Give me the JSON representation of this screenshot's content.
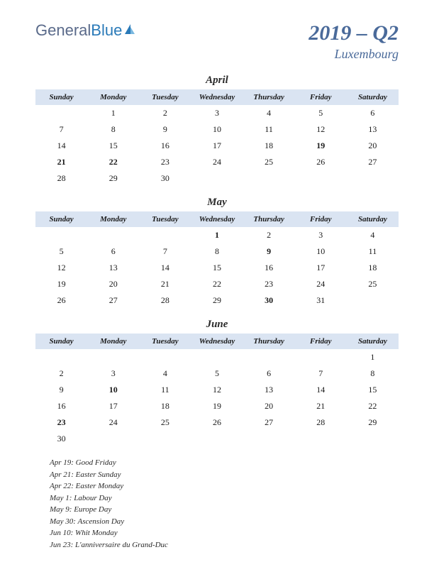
{
  "logo": {
    "part1": "General",
    "part2": "Blue"
  },
  "title": "2019 – Q2",
  "country": "Luxembourg",
  "day_headers": [
    "Sunday",
    "Monday",
    "Tuesday",
    "Wednesday",
    "Thursday",
    "Friday",
    "Saturday"
  ],
  "header_bg": "#dae4f2",
  "title_color": "#4a6a9a",
  "holiday_color": "#b22222",
  "months": [
    {
      "name": "April",
      "weeks": [
        [
          "",
          "1",
          "2",
          "3",
          "4",
          "5",
          "6"
        ],
        [
          "7",
          "8",
          "9",
          "10",
          "11",
          "12",
          "13"
        ],
        [
          "14",
          "15",
          "16",
          "17",
          "18",
          "19",
          "20"
        ],
        [
          "21",
          "22",
          "23",
          "24",
          "25",
          "26",
          "27"
        ],
        [
          "28",
          "29",
          "30",
          "",
          "",
          "",
          ""
        ]
      ],
      "holidays": [
        "19",
        "21",
        "22"
      ]
    },
    {
      "name": "May",
      "weeks": [
        [
          "",
          "",
          "",
          "1",
          "2",
          "3",
          "4"
        ],
        [
          "5",
          "6",
          "7",
          "8",
          "9",
          "10",
          "11"
        ],
        [
          "12",
          "13",
          "14",
          "15",
          "16",
          "17",
          "18"
        ],
        [
          "19",
          "20",
          "21",
          "22",
          "23",
          "24",
          "25"
        ],
        [
          "26",
          "27",
          "28",
          "29",
          "30",
          "31",
          ""
        ]
      ],
      "holidays": [
        "1",
        "9",
        "30"
      ]
    },
    {
      "name": "June",
      "weeks": [
        [
          "",
          "",
          "",
          "",
          "",
          "",
          "1"
        ],
        [
          "2",
          "3",
          "4",
          "5",
          "6",
          "7",
          "8"
        ],
        [
          "9",
          "10",
          "11",
          "12",
          "13",
          "14",
          "15"
        ],
        [
          "16",
          "17",
          "18",
          "19",
          "20",
          "21",
          "22"
        ],
        [
          "23",
          "24",
          "25",
          "26",
          "27",
          "28",
          "29"
        ],
        [
          "30",
          "",
          "",
          "",
          "",
          "",
          ""
        ]
      ],
      "holidays": [
        "10",
        "23"
      ]
    }
  ],
  "holiday_list": [
    "Apr 19: Good Friday",
    "Apr 21: Easter Sunday",
    "Apr 22: Easter Monday",
    "May 1: Labour Day",
    "May 9: Europe Day",
    "May 30: Ascension Day",
    "Jun 10: Whit Monday",
    "Jun 23: L'anniversaire du Grand-Duc"
  ]
}
